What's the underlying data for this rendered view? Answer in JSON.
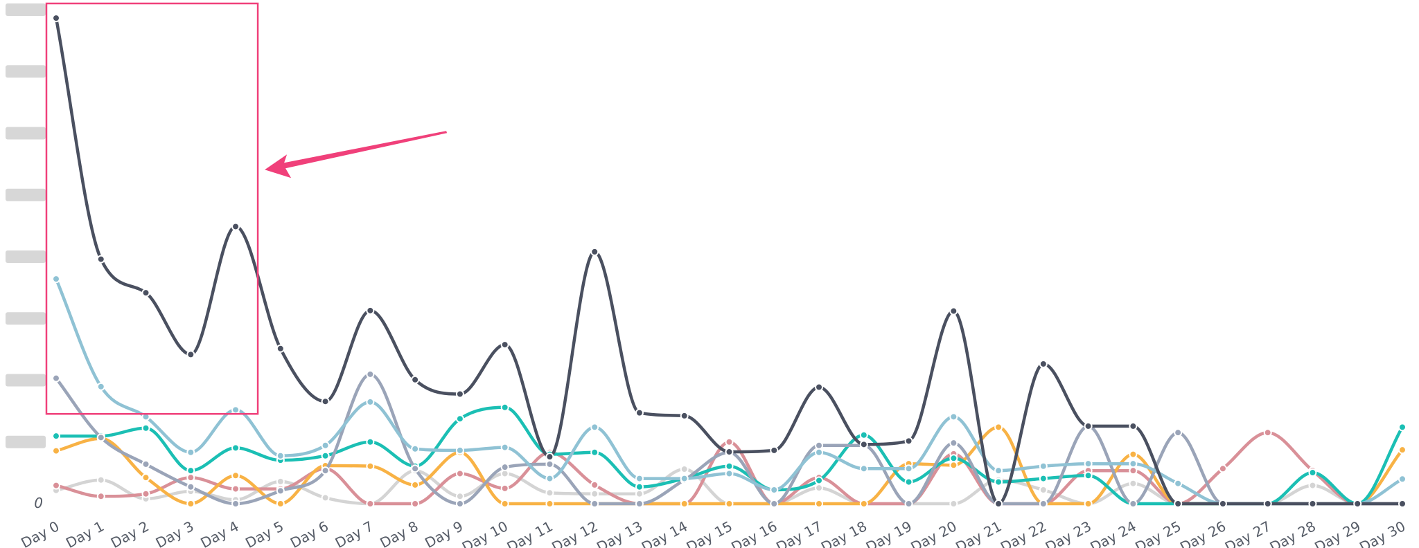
{
  "chart_data": {
    "type": "line",
    "title": "",
    "xlabel": "",
    "ylabel": "",
    "x": [
      "Day 0",
      "Day 1",
      "Day 2",
      "Day 3",
      "Day 4",
      "Day 5",
      "Day 6",
      "Day 7",
      "Day 8",
      "Day 9",
      "Day 10",
      "Day 11",
      "Day 12",
      "Day 13",
      "Day 14",
      "Day 15",
      "Day 16",
      "Day 17",
      "Day 18",
      "Day 19",
      "Day 20",
      "Day 21",
      "Day 22",
      "Day 23",
      "Day 24",
      "Day 25",
      "Day 26",
      "Day 27",
      "Day 28",
      "Day 29",
      "Day 30"
    ],
    "ylim": [
      0,
      1000
    ],
    "y_tick_labels": [
      "0"
    ],
    "y_tick_values": [
      0
    ],
    "blurred_y_tick_values": [
      125,
      250,
      375,
      500,
      625,
      750,
      875,
      1000
    ],
    "grid": false,
    "legend": "none",
    "series": [
      {
        "color": "#4a5060",
        "values": [
          983,
          495,
          427,
          302,
          561,
          314,
          207,
          391,
          251,
          222,
          322,
          95,
          510,
          184,
          178,
          105,
          108,
          236,
          120,
          127,
          390,
          0,
          283,
          157,
          157,
          0,
          0,
          0,
          0,
          0,
          0
        ]
      },
      {
        "color": "#8fc2d4",
        "values": [
          455,
          237,
          176,
          104,
          190,
          97,
          118,
          206,
          111,
          108,
          114,
          51,
          155,
          51,
          51,
          61,
          28,
          104,
          71,
          71,
          176,
          67,
          76,
          81,
          81,
          41,
          0,
          0,
          0,
          0,
          50
        ]
      },
      {
        "color": "#9aa4b8",
        "values": [
          254,
          134,
          80,
          34,
          0,
          26,
          67,
          262,
          71,
          0,
          74,
          80,
          0,
          0,
          48,
          104,
          0,
          118,
          118,
          0,
          123,
          0,
          0,
          157,
          0,
          144,
          0,
          0,
          0,
          0,
          0
        ]
      },
      {
        "color": "#1bbfb4",
        "values": [
          137,
          137,
          153,
          67,
          113,
          88,
          97,
          125,
          76,
          172,
          195,
          100,
          104,
          34,
          51,
          76,
          28,
          47,
          139,
          44,
          92,
          44,
          51,
          57,
          0,
          0,
          0,
          0,
          63,
          0,
          155
        ]
      },
      {
        "color": "#f8b245",
        "values": [
          107,
          132,
          53,
          0,
          57,
          0,
          77,
          76,
          38,
          104,
          0,
          0,
          0,
          0,
          0,
          0,
          0,
          0,
          0,
          81,
          78,
          155,
          0,
          0,
          100,
          0,
          0,
          0,
          0,
          0,
          109
        ]
      },
      {
        "color": "#d99098",
        "values": [
          37,
          15,
          20,
          53,
          30,
          30,
          71,
          0,
          0,
          61,
          31,
          104,
          38,
          0,
          0,
          125,
          0,
          53,
          0,
          0,
          101,
          0,
          0,
          67,
          67,
          0,
          71,
          144,
          67,
          0,
          0
        ]
      },
      {
        "color": "#d4d4d4",
        "values": [
          27,
          48,
          10,
          25,
          8,
          45,
          12,
          0,
          67,
          15,
          61,
          22,
          20,
          20,
          70,
          0,
          0,
          32,
          0,
          0,
          0,
          48,
          28,
          0,
          41,
          0,
          0,
          0,
          37,
          0,
          0
        ]
      }
    ],
    "annotation": {
      "type": "highlight-box-with-arrow",
      "x_range": [
        "Day 0",
        "Day 4"
      ],
      "y_range": [
        200,
        1000
      ],
      "color": "#f0407a"
    }
  }
}
